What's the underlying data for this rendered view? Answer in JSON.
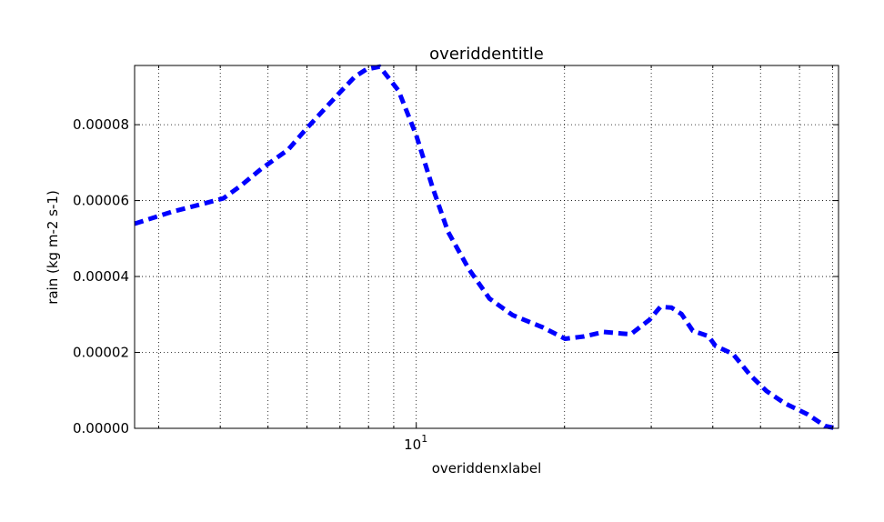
{
  "chart_data": {
    "type": "line",
    "title": "overiddentitle",
    "xlabel": "overiddenxlabel",
    "ylabel": "rain (kg m-2 s-1)",
    "xscale": "log",
    "xlim": [
      2.68,
      72
    ],
    "ylim": [
      0,
      9.56e-05
    ],
    "grid": true,
    "legend": "none",
    "yticks": [
      {
        "value": 0.0,
        "label": "0.00000"
      },
      {
        "value": 2e-05,
        "label": "0.00002"
      },
      {
        "value": 4e-05,
        "label": "0.00004"
      },
      {
        "value": 6e-05,
        "label": "0.00006"
      },
      {
        "value": 8e-05,
        "label": "0.00008"
      }
    ],
    "xticks": [
      {
        "value": 10,
        "base": "10",
        "exp": "1"
      }
    ],
    "series": [
      {
        "color": "#0000ff",
        "linestyle": "dashed",
        "x": [
          2.68,
          3.2,
          3.7,
          4.06,
          4.42,
          4.84,
          5.49,
          5.97,
          6.49,
          6.94,
          7.5,
          7.92,
          8.43,
          9.2,
          10.0,
          10.79,
          11.6,
          12.78,
          14.08,
          15.7,
          18.07,
          20.06,
          21.87,
          24.03,
          26.08,
          27.26,
          29.76,
          31.3,
          32.99,
          34.56,
          36.42,
          39.17,
          40.53,
          43.95,
          47.67,
          51.44,
          56.0,
          62.3,
          67.6,
          71.3
        ],
        "y": [
          5.39e-05,
          5.71e-05,
          5.92e-05,
          6.06e-05,
          6.41e-05,
          6.83e-05,
          7.34e-05,
          7.88e-05,
          8.39e-05,
          8.8e-05,
          9.26e-05,
          9.46e-05,
          9.53e-05,
          8.9e-05,
          7.72e-05,
          6.35e-05,
          5.18e-05,
          4.2e-05,
          3.42e-05,
          2.98e-05,
          2.66e-05,
          2.36e-05,
          2.42e-05,
          2.54e-05,
          2.5e-05,
          2.48e-05,
          2.86e-05,
          3.2e-05,
          3.18e-05,
          3.01e-05,
          2.57e-05,
          2.43e-05,
          2.17e-05,
          1.96e-05,
          1.4e-05,
          9.8e-06,
          6.6e-06,
          3.7e-06,
          6e-07,
          0.0
        ]
      }
    ]
  }
}
